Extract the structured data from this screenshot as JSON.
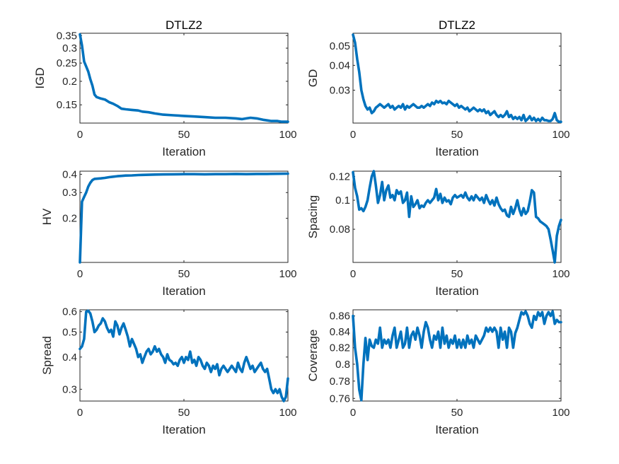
{
  "colors": {
    "line": "#0072BD",
    "axis": "#262626",
    "background": "#ffffff"
  },
  "chart_data": [
    {
      "type": "line",
      "title": "DTLZ2",
      "xlabel": "Iteration",
      "ylabel": "IGD",
      "xlim": [
        0,
        100
      ],
      "ylim": [
        0.12,
        0.36
      ],
      "yscale": "log",
      "xticks": [
        0,
        50,
        100
      ],
      "xtick_labels": [
        "0",
        "50",
        "100"
      ],
      "yticks": [
        0.15,
        0.2,
        0.25,
        0.3,
        0.35
      ],
      "ytick_labels": [
        "0.15",
        "0.2",
        "0.25",
        "0.3",
        "0.35"
      ],
      "grid": false,
      "x": [
        0,
        1,
        2,
        3,
        4,
        5,
        6,
        7,
        8,
        10,
        12,
        14,
        16,
        18,
        20,
        22,
        25,
        28,
        30,
        33,
        36,
        40,
        45,
        50,
        55,
        60,
        65,
        70,
        75,
        78,
        80,
        82,
        85,
        88,
        90,
        92,
        95,
        97,
        100
      ],
      "y": [
        0.355,
        0.31,
        0.255,
        0.24,
        0.225,
        0.205,
        0.19,
        0.17,
        0.165,
        0.162,
        0.16,
        0.155,
        0.152,
        0.148,
        0.143,
        0.142,
        0.141,
        0.14,
        0.138,
        0.137,
        0.135,
        0.133,
        0.132,
        0.131,
        0.13,
        0.129,
        0.128,
        0.128,
        0.127,
        0.126,
        0.127,
        0.128,
        0.127,
        0.125,
        0.124,
        0.123,
        0.123,
        0.122,
        0.122
      ]
    },
    {
      "type": "line",
      "title": "DTLZ2",
      "xlabel": "Iteration",
      "ylabel": "GD",
      "xlim": [
        0,
        100
      ],
      "ylim": [
        0.0205,
        0.058
      ],
      "yscale": "log",
      "xticks": [
        0,
        50,
        100
      ],
      "xtick_labels": [
        "0",
        "50",
        "100"
      ],
      "yticks": [
        0.03,
        0.04,
        0.05
      ],
      "ytick_labels": [
        "0.03",
        "0.04",
        "0.05"
      ],
      "grid": false,
      "x": [
        0,
        1,
        2,
        3,
        4,
        5,
        6,
        7,
        8,
        9,
        10,
        11,
        12,
        13,
        14,
        15,
        16,
        17,
        18,
        19,
        20,
        21,
        22,
        23,
        24,
        25,
        26,
        27,
        28,
        29,
        30,
        31,
        32,
        33,
        34,
        35,
        36,
        37,
        38,
        39,
        40,
        41,
        42,
        43,
        44,
        45,
        46,
        47,
        48,
        49,
        50,
        51,
        52,
        53,
        54,
        55,
        56,
        57,
        58,
        59,
        60,
        61,
        62,
        63,
        64,
        65,
        66,
        67,
        68,
        69,
        70,
        71,
        72,
        73,
        74,
        75,
        76,
        77,
        78,
        79,
        80,
        81,
        82,
        83,
        84,
        85,
        86,
        87,
        88,
        89,
        90,
        91,
        92,
        93,
        94,
        95,
        96,
        97,
        98,
        99,
        100
      ],
      "y": [
        0.057,
        0.052,
        0.043,
        0.037,
        0.03,
        0.027,
        0.025,
        0.024,
        0.0245,
        0.023,
        0.0235,
        0.0245,
        0.025,
        0.0255,
        0.025,
        0.0245,
        0.025,
        0.0255,
        0.0245,
        0.025,
        0.024,
        0.0245,
        0.025,
        0.0245,
        0.0255,
        0.024,
        0.025,
        0.0245,
        0.025,
        0.0255,
        0.025,
        0.0245,
        0.0245,
        0.025,
        0.0245,
        0.025,
        0.0255,
        0.025,
        0.026,
        0.0255,
        0.0265,
        0.026,
        0.0265,
        0.0258,
        0.026,
        0.0255,
        0.0265,
        0.026,
        0.0255,
        0.025,
        0.0255,
        0.0245,
        0.025,
        0.0245,
        0.024,
        0.0245,
        0.0235,
        0.024,
        0.0245,
        0.024,
        0.0235,
        0.024,
        0.0235,
        0.024,
        0.023,
        0.0235,
        0.0225,
        0.023,
        0.0235,
        0.0225,
        0.022,
        0.0225,
        0.022,
        0.0225,
        0.0235,
        0.022,
        0.0225,
        0.0215,
        0.022,
        0.0215,
        0.022,
        0.0212,
        0.0225,
        0.021,
        0.0215,
        0.0222,
        0.0212,
        0.0218,
        0.021,
        0.0215,
        0.021,
        0.0218,
        0.0212,
        0.0212,
        0.021,
        0.021,
        0.0215,
        0.023,
        0.0212,
        0.0208,
        0.0208
      ]
    },
    {
      "type": "line",
      "title": "",
      "xlabel": "Iteration",
      "ylabel": "HV",
      "xlim": [
        0,
        100
      ],
      "ylim": [
        0.1,
        0.42
      ],
      "yscale": "log",
      "xticks": [
        0,
        50,
        100
      ],
      "xtick_labels": [
        "0",
        "50",
        "100"
      ],
      "yticks": [
        0.2,
        0.3,
        0.4
      ],
      "ytick_labels": [
        "0.2",
        "0.3",
        "0.4"
      ],
      "grid": false,
      "x": [
        0,
        1,
        2,
        3,
        4,
        5,
        6,
        7,
        8,
        10,
        12,
        14,
        16,
        18,
        20,
        22,
        25,
        28,
        30,
        33,
        36,
        40,
        45,
        50,
        55,
        60,
        65,
        70,
        75,
        80,
        85,
        90,
        95,
        100
      ],
      "y": [
        0.1,
        0.26,
        0.28,
        0.3,
        0.33,
        0.35,
        0.365,
        0.372,
        0.373,
        0.375,
        0.378,
        0.382,
        0.385,
        0.388,
        0.39,
        0.392,
        0.393,
        0.395,
        0.396,
        0.397,
        0.398,
        0.399,
        0.4,
        0.401,
        0.401,
        0.4,
        0.401,
        0.401,
        0.402,
        0.401,
        0.402,
        0.402,
        0.403,
        0.404
      ]
    },
    {
      "type": "line",
      "title": "",
      "xlabel": "Iteration",
      "ylabel": "Spacing",
      "xlim": [
        0,
        100
      ],
      "ylim": [
        0.062,
        0.125
      ],
      "yscale": "log",
      "xticks": [
        0,
        50,
        100
      ],
      "xtick_labels": [
        "0",
        "50",
        "100"
      ],
      "yticks": [
        0.08,
        0.1,
        0.12
      ],
      "ytick_labels": [
        "0.08",
        "0.1",
        "0.12"
      ],
      "grid": false,
      "x": [
        0,
        1,
        2,
        3,
        4,
        5,
        6,
        7,
        8,
        9,
        10,
        11,
        12,
        13,
        14,
        15,
        16,
        17,
        18,
        19,
        20,
        21,
        22,
        23,
        24,
        25,
        26,
        27,
        28,
        29,
        30,
        31,
        32,
        33,
        34,
        35,
        36,
        37,
        38,
        39,
        40,
        41,
        42,
        43,
        44,
        45,
        46,
        47,
        48,
        49,
        50,
        51,
        52,
        53,
        54,
        55,
        56,
        57,
        58,
        59,
        60,
        61,
        62,
        63,
        64,
        65,
        66,
        67,
        68,
        69,
        70,
        71,
        72,
        73,
        74,
        75,
        76,
        77,
        78,
        79,
        80,
        81,
        82,
        83,
        84,
        85,
        86,
        87,
        88,
        89,
        90,
        91,
        92,
        93,
        94,
        95,
        96,
        97,
        98,
        99,
        100
      ],
      "y": [
        0.124,
        0.11,
        0.103,
        0.093,
        0.094,
        0.092,
        0.095,
        0.1,
        0.11,
        0.12,
        0.125,
        0.112,
        0.098,
        0.104,
        0.115,
        0.1,
        0.108,
        0.112,
        0.102,
        0.104,
        0.1,
        0.108,
        0.105,
        0.107,
        0.098,
        0.1,
        0.106,
        0.088,
        0.103,
        0.095,
        0.097,
        0.1,
        0.094,
        0.096,
        0.095,
        0.098,
        0.1,
        0.098,
        0.1,
        0.102,
        0.109,
        0.1,
        0.105,
        0.098,
        0.102,
        0.099,
        0.1,
        0.097,
        0.102,
        0.104,
        0.102,
        0.103,
        0.104,
        0.102,
        0.106,
        0.102,
        0.1,
        0.103,
        0.1,
        0.104,
        0.102,
        0.1,
        0.102,
        0.098,
        0.104,
        0.1,
        0.097,
        0.1,
        0.096,
        0.102,
        0.097,
        0.094,
        0.092,
        0.093,
        0.089,
        0.088,
        0.095,
        0.09,
        0.094,
        0.1,
        0.093,
        0.089,
        0.094,
        0.09,
        0.092,
        0.099,
        0.108,
        0.106,
        0.088,
        0.087,
        0.085,
        0.084,
        0.083,
        0.082,
        0.08,
        0.074,
        0.068,
        0.062,
        0.076,
        0.082,
        0.086
      ]
    },
    {
      "type": "line",
      "title": "",
      "xlabel": "Iteration",
      "ylabel": "Spread",
      "xlim": [
        0,
        100
      ],
      "ylim": [
        0.27,
        0.61
      ],
      "yscale": "log",
      "xticks": [
        0,
        50,
        100
      ],
      "xtick_labels": [
        "0",
        "50",
        "100"
      ],
      "yticks": [
        0.3,
        0.4,
        0.5,
        0.6
      ],
      "ytick_labels": [
        "0.3",
        "0.4",
        "0.5",
        "0.6"
      ],
      "grid": false,
      "x": [
        0,
        1,
        2,
        3,
        4,
        5,
        6,
        7,
        8,
        9,
        10,
        11,
        12,
        13,
        14,
        15,
        16,
        17,
        18,
        19,
        20,
        21,
        22,
        23,
        24,
        25,
        26,
        27,
        28,
        29,
        30,
        31,
        32,
        33,
        34,
        35,
        36,
        37,
        38,
        39,
        40,
        41,
        42,
        43,
        44,
        45,
        46,
        47,
        48,
        49,
        50,
        51,
        52,
        53,
        54,
        55,
        56,
        57,
        58,
        59,
        60,
        61,
        62,
        63,
        64,
        65,
        66,
        67,
        68,
        69,
        70,
        71,
        72,
        73,
        74,
        75,
        76,
        77,
        78,
        79,
        80,
        81,
        82,
        83,
        84,
        85,
        86,
        87,
        88,
        89,
        90,
        91,
        92,
        93,
        94,
        95,
        96,
        97,
        98,
        99,
        100
      ],
      "y": [
        0.43,
        0.44,
        0.47,
        0.6,
        0.605,
        0.59,
        0.55,
        0.5,
        0.51,
        0.53,
        0.54,
        0.565,
        0.55,
        0.52,
        0.5,
        0.51,
        0.48,
        0.55,
        0.53,
        0.49,
        0.52,
        0.54,
        0.51,
        0.48,
        0.44,
        0.47,
        0.45,
        0.43,
        0.4,
        0.41,
        0.38,
        0.4,
        0.42,
        0.43,
        0.41,
        0.42,
        0.44,
        0.42,
        0.43,
        0.41,
        0.4,
        0.38,
        0.41,
        0.39,
        0.385,
        0.375,
        0.38,
        0.37,
        0.39,
        0.4,
        0.38,
        0.4,
        0.39,
        0.42,
        0.38,
        0.39,
        0.37,
        0.4,
        0.39,
        0.37,
        0.36,
        0.38,
        0.37,
        0.35,
        0.37,
        0.36,
        0.375,
        0.34,
        0.36,
        0.37,
        0.36,
        0.35,
        0.36,
        0.37,
        0.36,
        0.35,
        0.38,
        0.36,
        0.35,
        0.38,
        0.4,
        0.38,
        0.36,
        0.37,
        0.35,
        0.36,
        0.37,
        0.38,
        0.36,
        0.35,
        0.36,
        0.33,
        0.3,
        0.29,
        0.3,
        0.29,
        0.3,
        0.28,
        0.27,
        0.28,
        0.33
      ]
    },
    {
      "type": "line",
      "title": "",
      "xlabel": "Iteration",
      "ylabel": "Coverage",
      "xlim": [
        0,
        100
      ],
      "ylim": [
        0.757,
        0.868
      ],
      "yscale": "log",
      "xticks": [
        0,
        50,
        100
      ],
      "xtick_labels": [
        "0",
        "50",
        "100"
      ],
      "yticks": [
        0.76,
        0.78,
        0.8,
        0.82,
        0.84,
        0.86
      ],
      "ytick_labels": [
        "0.76",
        "0.78",
        "0.8",
        "0.82",
        "0.84",
        "0.86"
      ],
      "grid": false,
      "x": [
        0,
        1,
        2,
        3,
        4,
        5,
        6,
        7,
        8,
        9,
        10,
        11,
        12,
        13,
        14,
        15,
        16,
        17,
        18,
        19,
        20,
        21,
        22,
        23,
        24,
        25,
        26,
        27,
        28,
        29,
        30,
        31,
        32,
        33,
        34,
        35,
        36,
        37,
        38,
        39,
        40,
        41,
        42,
        43,
        44,
        45,
        46,
        47,
        48,
        49,
        50,
        51,
        52,
        53,
        54,
        55,
        56,
        57,
        58,
        59,
        60,
        61,
        62,
        63,
        64,
        65,
        66,
        67,
        68,
        69,
        70,
        71,
        72,
        73,
        74,
        75,
        76,
        77,
        78,
        79,
        80,
        81,
        82,
        83,
        84,
        85,
        86,
        87,
        88,
        89,
        90,
        91,
        92,
        93,
        94,
        95,
        96,
        97,
        98,
        99,
        100
      ],
      "y": [
        0.86,
        0.82,
        0.8,
        0.77,
        0.758,
        0.8,
        0.832,
        0.805,
        0.83,
        0.822,
        0.82,
        0.83,
        0.825,
        0.845,
        0.82,
        0.83,
        0.825,
        0.83,
        0.82,
        0.835,
        0.845,
        0.82,
        0.83,
        0.84,
        0.82,
        0.825,
        0.845,
        0.82,
        0.835,
        0.84,
        0.83,
        0.845,
        0.835,
        0.82,
        0.84,
        0.852,
        0.845,
        0.83,
        0.82,
        0.835,
        0.83,
        0.84,
        0.82,
        0.845,
        0.825,
        0.835,
        0.82,
        0.83,
        0.825,
        0.835,
        0.82,
        0.83,
        0.82,
        0.83,
        0.82,
        0.835,
        0.825,
        0.83,
        0.82,
        0.835,
        0.83,
        0.825,
        0.83,
        0.835,
        0.845,
        0.84,
        0.845,
        0.84,
        0.845,
        0.84,
        0.82,
        0.845,
        0.83,
        0.84,
        0.82,
        0.845,
        0.84,
        0.82,
        0.838,
        0.845,
        0.855,
        0.865,
        0.862,
        0.866,
        0.86,
        0.85,
        0.845,
        0.86,
        0.855,
        0.865,
        0.86,
        0.865,
        0.85,
        0.86,
        0.865,
        0.86,
        0.866,
        0.85,
        0.855,
        0.852,
        0.852
      ]
    }
  ]
}
